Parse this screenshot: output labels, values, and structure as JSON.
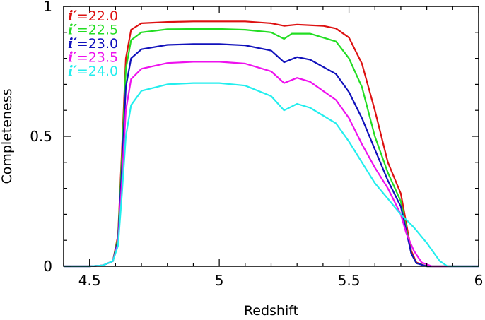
{
  "chart_data": {
    "type": "line",
    "xlabel": "Redshift",
    "ylabel": "Completeness",
    "xlim": [
      4.4,
      6.0
    ],
    "ylim": [
      0,
      1.0
    ],
    "x_ticks": [
      4.5,
      5,
      5.5,
      6
    ],
    "x_tick_labels": [
      "4.5",
      "5",
      "5.5",
      "6"
    ],
    "y_ticks": [
      0,
      0.5,
      1
    ],
    "y_tick_labels": [
      "0",
      "0.5",
      "1"
    ],
    "legend_position": "top-left",
    "series": [
      {
        "name": "i′=22.0",
        "label_prefix": "i′",
        "label_value": "=22.0",
        "color": "#dd1111",
        "points": [
          [
            4.4,
            0
          ],
          [
            4.5,
            0
          ],
          [
            4.55,
            0.003
          ],
          [
            4.59,
            0.02
          ],
          [
            4.61,
            0.12
          ],
          [
            4.625,
            0.45
          ],
          [
            4.64,
            0.8
          ],
          [
            4.66,
            0.91
          ],
          [
            4.7,
            0.935
          ],
          [
            4.8,
            0.94
          ],
          [
            4.9,
            0.942
          ],
          [
            5.0,
            0.942
          ],
          [
            5.1,
            0.942
          ],
          [
            5.2,
            0.935
          ],
          [
            5.25,
            0.925
          ],
          [
            5.3,
            0.93
          ],
          [
            5.4,
            0.925
          ],
          [
            5.45,
            0.915
          ],
          [
            5.5,
            0.88
          ],
          [
            5.55,
            0.78
          ],
          [
            5.6,
            0.6
          ],
          [
            5.65,
            0.4
          ],
          [
            5.7,
            0.28
          ],
          [
            5.72,
            0.17
          ],
          [
            5.74,
            0.06
          ],
          [
            5.76,
            0.015
          ],
          [
            5.8,
            0
          ],
          [
            6.0,
            0
          ]
        ]
      },
      {
        "name": "i′=22.5",
        "label_prefix": "i′",
        "label_value": "=22.5",
        "color": "#22dd22",
        "points": [
          [
            4.4,
            0
          ],
          [
            4.5,
            0
          ],
          [
            4.55,
            0.003
          ],
          [
            4.59,
            0.02
          ],
          [
            4.61,
            0.11
          ],
          [
            4.625,
            0.42
          ],
          [
            4.64,
            0.76
          ],
          [
            4.66,
            0.87
          ],
          [
            4.7,
            0.9
          ],
          [
            4.8,
            0.912
          ],
          [
            4.9,
            0.913
          ],
          [
            5.0,
            0.913
          ],
          [
            5.1,
            0.91
          ],
          [
            5.2,
            0.9
          ],
          [
            5.25,
            0.875
          ],
          [
            5.28,
            0.895
          ],
          [
            5.35,
            0.895
          ],
          [
            5.45,
            0.865
          ],
          [
            5.5,
            0.8
          ],
          [
            5.55,
            0.69
          ],
          [
            5.6,
            0.5
          ],
          [
            5.65,
            0.36
          ],
          [
            5.7,
            0.25
          ],
          [
            5.72,
            0.15
          ],
          [
            5.74,
            0.05
          ],
          [
            5.76,
            0.012
          ],
          [
            5.8,
            0
          ],
          [
            6.0,
            0
          ]
        ]
      },
      {
        "name": "i′=23.0",
        "label_prefix": "i′",
        "label_value": "=23.0",
        "color": "#1111bb",
        "points": [
          [
            4.4,
            0
          ],
          [
            4.5,
            0
          ],
          [
            4.55,
            0.003
          ],
          [
            4.59,
            0.02
          ],
          [
            4.61,
            0.1
          ],
          [
            4.625,
            0.38
          ],
          [
            4.64,
            0.69
          ],
          [
            4.66,
            0.8
          ],
          [
            4.7,
            0.835
          ],
          [
            4.8,
            0.852
          ],
          [
            4.9,
            0.855
          ],
          [
            5.0,
            0.855
          ],
          [
            5.1,
            0.85
          ],
          [
            5.2,
            0.83
          ],
          [
            5.25,
            0.785
          ],
          [
            5.3,
            0.805
          ],
          [
            5.35,
            0.795
          ],
          [
            5.45,
            0.74
          ],
          [
            5.5,
            0.67
          ],
          [
            5.55,
            0.57
          ],
          [
            5.6,
            0.45
          ],
          [
            5.65,
            0.33
          ],
          [
            5.7,
            0.23
          ],
          [
            5.72,
            0.14
          ],
          [
            5.74,
            0.05
          ],
          [
            5.76,
            0.012
          ],
          [
            5.8,
            0
          ],
          [
            6.0,
            0
          ]
        ]
      },
      {
        "name": "i′=23.5",
        "label_prefix": "i′",
        "label_value": "=23.5",
        "color": "#ee11ee",
        "points": [
          [
            4.4,
            0
          ],
          [
            4.5,
            0
          ],
          [
            4.55,
            0.003
          ],
          [
            4.59,
            0.02
          ],
          [
            4.61,
            0.09
          ],
          [
            4.625,
            0.33
          ],
          [
            4.64,
            0.6
          ],
          [
            4.66,
            0.72
          ],
          [
            4.7,
            0.76
          ],
          [
            4.8,
            0.782
          ],
          [
            4.9,
            0.787
          ],
          [
            5.0,
            0.787
          ],
          [
            5.1,
            0.78
          ],
          [
            5.2,
            0.75
          ],
          [
            5.25,
            0.705
          ],
          [
            5.3,
            0.725
          ],
          [
            5.35,
            0.71
          ],
          [
            5.45,
            0.64
          ],
          [
            5.5,
            0.57
          ],
          [
            5.55,
            0.47
          ],
          [
            5.6,
            0.38
          ],
          [
            5.65,
            0.3
          ],
          [
            5.7,
            0.2
          ],
          [
            5.72,
            0.13
          ],
          [
            5.75,
            0.06
          ],
          [
            5.78,
            0.015
          ],
          [
            5.82,
            0
          ],
          [
            6.0,
            0
          ]
        ]
      },
      {
        "name": "i′=24.0",
        "label_prefix": "i′",
        "label_value": "=24.0",
        "color": "#22eeee",
        "points": [
          [
            4.4,
            0
          ],
          [
            4.5,
            0
          ],
          [
            4.55,
            0.003
          ],
          [
            4.59,
            0.02
          ],
          [
            4.61,
            0.08
          ],
          [
            4.625,
            0.28
          ],
          [
            4.64,
            0.5
          ],
          [
            4.66,
            0.62
          ],
          [
            4.7,
            0.675
          ],
          [
            4.8,
            0.7
          ],
          [
            4.9,
            0.705
          ],
          [
            5.0,
            0.705
          ],
          [
            5.1,
            0.695
          ],
          [
            5.2,
            0.655
          ],
          [
            5.25,
            0.6
          ],
          [
            5.3,
            0.625
          ],
          [
            5.35,
            0.61
          ],
          [
            5.45,
            0.55
          ],
          [
            5.5,
            0.48
          ],
          [
            5.55,
            0.4
          ],
          [
            5.6,
            0.32
          ],
          [
            5.65,
            0.26
          ],
          [
            5.7,
            0.2
          ],
          [
            5.75,
            0.15
          ],
          [
            5.8,
            0.09
          ],
          [
            5.85,
            0.02
          ],
          [
            5.88,
            0
          ],
          [
            6.0,
            0
          ]
        ]
      }
    ]
  }
}
